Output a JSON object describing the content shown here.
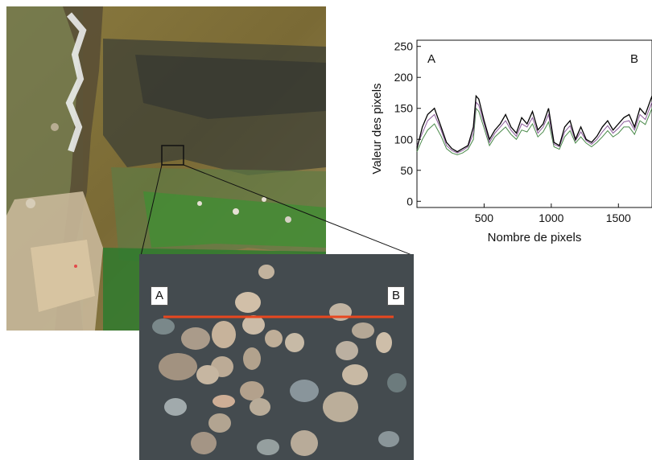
{
  "figure": {
    "profile_start_label": "A",
    "profile_end_label": "B",
    "colors": {
      "profile_line": "#e8471f",
      "plot_trace": "#000000",
      "algae_green": "#3f8f33",
      "water": "#3b4046"
    }
  },
  "chart_data": {
    "type": "line",
    "title": "",
    "xlabel": "Nombre de pixels",
    "ylabel": "Valeur des pixels",
    "xlim": [
      0,
      1750
    ],
    "ylim": [
      -10,
      260
    ],
    "x_ticks": [
      500,
      1000,
      1500
    ],
    "y_ticks": [
      0,
      50,
      100,
      150,
      200,
      250
    ],
    "annotations": [
      "A",
      "B"
    ],
    "grid": false,
    "series": [
      {
        "x": [
          0,
          40,
          80,
          130,
          180,
          220,
          260,
          300,
          340,
          380,
          420,
          440,
          460,
          500,
          540,
          580,
          620,
          660,
          700,
          740,
          780,
          820,
          860,
          900,
          940,
          980,
          1020,
          1060,
          1100,
          1140,
          1180,
          1220,
          1260,
          1300,
          1340,
          1380,
          1420,
          1460,
          1500,
          1540,
          1580,
          1620,
          1660,
          1700,
          1750
        ],
        "y": [
          85,
          120,
          140,
          150,
          120,
          95,
          85,
          80,
          85,
          90,
          120,
          170,
          165,
          130,
          100,
          115,
          125,
          140,
          120,
          110,
          135,
          125,
          145,
          115,
          125,
          150,
          95,
          90,
          120,
          130,
          100,
          120,
          100,
          95,
          105,
          120,
          130,
          115,
          125,
          135,
          140,
          120,
          150,
          140,
          170
        ]
      },
      {
        "x": [
          0,
          40,
          80,
          130,
          180,
          220,
          260,
          300,
          340,
          380,
          420,
          440,
          460,
          500,
          540,
          580,
          620,
          660,
          700,
          740,
          780,
          820,
          860,
          900,
          940,
          980,
          1020,
          1060,
          1100,
          1140,
          1180,
          1220,
          1260,
          1300,
          1340,
          1380,
          1420,
          1460,
          1500,
          1540,
          1580,
          1620,
          1660,
          1700,
          1750
        ],
        "y": [
          90,
          110,
          130,
          140,
          115,
          90,
          82,
          78,
          82,
          88,
          110,
          160,
          155,
          125,
          95,
          110,
          120,
          130,
          115,
          105,
          125,
          120,
          135,
          110,
          120,
          140,
          92,
          88,
          112,
          122,
          98,
          112,
          98,
          92,
          100,
          112,
          122,
          110,
          118,
          128,
          130,
          115,
          140,
          132,
          160
        ]
      },
      {
        "x": [
          0,
          40,
          80,
          130,
          180,
          220,
          260,
          300,
          340,
          380,
          420,
          440,
          460,
          500,
          540,
          580,
          620,
          660,
          700,
          740,
          780,
          820,
          860,
          900,
          940,
          980,
          1020,
          1060,
          1100,
          1140,
          1180,
          1220,
          1260,
          1300,
          1340,
          1380,
          1420,
          1460,
          1500,
          1540,
          1580,
          1620,
          1660,
          1700,
          1750
        ],
        "y": [
          80,
          100,
          115,
          125,
          105,
          85,
          78,
          75,
          78,
          84,
          100,
          150,
          145,
          118,
          90,
          104,
          112,
          120,
          108,
          100,
          115,
          112,
          125,
          104,
          112,
          128,
          88,
          84,
          104,
          114,
          94,
          104,
          94,
          88,
          95,
          104,
          114,
          104,
          110,
          120,
          120,
          108,
          130,
          124,
          150
        ]
      }
    ]
  }
}
